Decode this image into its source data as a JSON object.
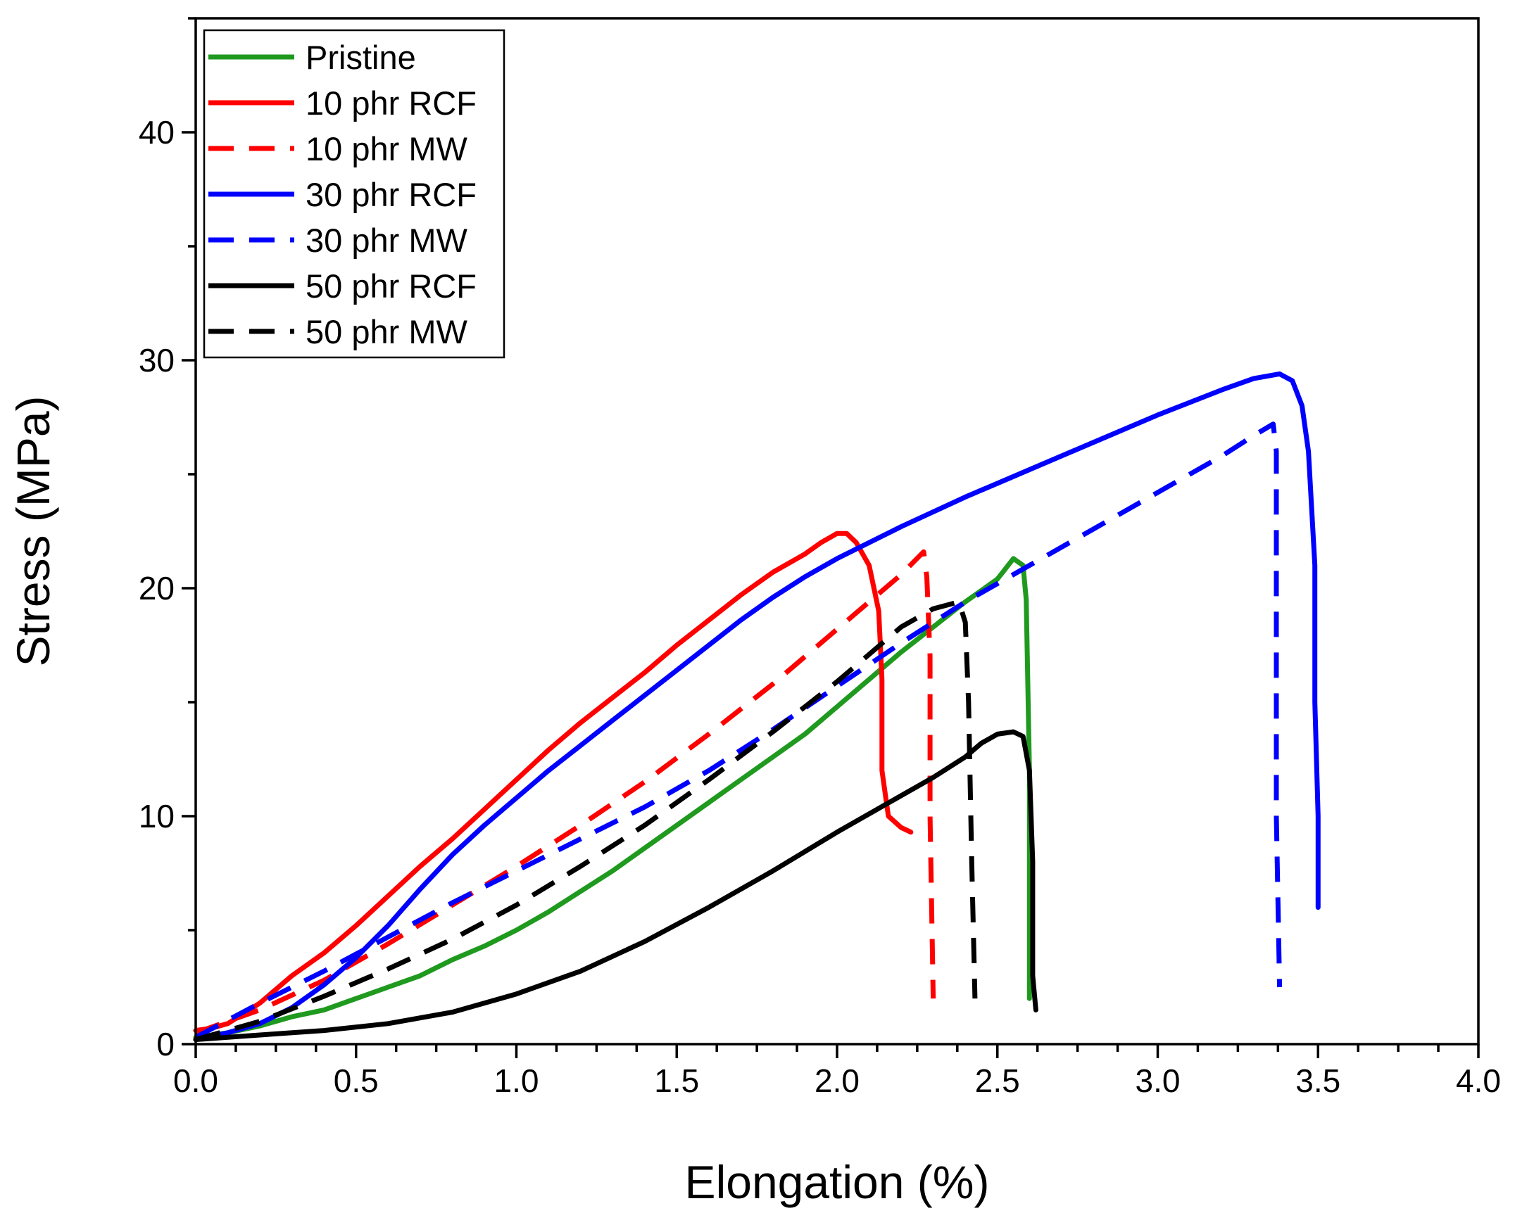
{
  "chart_data": {
    "type": "line",
    "title": "",
    "xlabel": "Elongation (%)",
    "ylabel": "Stress (MPa)",
    "xlim": [
      0,
      4.0
    ],
    "ylim": [
      0,
      45
    ],
    "x_ticks": [
      "0.0",
      "0.5",
      "1.0",
      "1.5",
      "2.0",
      "2.5",
      "3.0",
      "3.5",
      "4.0"
    ],
    "y_ticks": [
      "0",
      "10",
      "20",
      "30",
      "40"
    ],
    "x_tick_values": [
      0,
      0.5,
      1.0,
      1.5,
      2.0,
      2.5,
      3.0,
      3.5,
      4.0
    ],
    "y_tick_values": [
      0,
      10,
      20,
      30,
      40
    ],
    "legend_position": "top-left",
    "series": [
      {
        "name": "Pristine",
        "color": "#1f9a1f",
        "style": "solid",
        "points": [
          [
            0,
            0.3
          ],
          [
            0.1,
            0.5
          ],
          [
            0.2,
            0.8
          ],
          [
            0.3,
            1.2
          ],
          [
            0.4,
            1.5
          ],
          [
            0.5,
            2.0
          ],
          [
            0.6,
            2.5
          ],
          [
            0.7,
            3.0
          ],
          [
            0.8,
            3.7
          ],
          [
            0.9,
            4.3
          ],
          [
            1.0,
            5.0
          ],
          [
            1.1,
            5.8
          ],
          [
            1.2,
            6.7
          ],
          [
            1.3,
            7.6
          ],
          [
            1.4,
            8.6
          ],
          [
            1.5,
            9.6
          ],
          [
            1.6,
            10.6
          ],
          [
            1.7,
            11.6
          ],
          [
            1.8,
            12.6
          ],
          [
            1.9,
            13.6
          ],
          [
            2.0,
            14.8
          ],
          [
            2.1,
            16.0
          ],
          [
            2.2,
            17.2
          ],
          [
            2.3,
            18.3
          ],
          [
            2.4,
            19.4
          ],
          [
            2.5,
            20.4
          ],
          [
            2.55,
            21.3
          ],
          [
            2.58,
            21.0
          ],
          [
            2.59,
            19.5
          ],
          [
            2.6,
            12.0
          ],
          [
            2.6,
            2.0
          ]
        ]
      },
      {
        "name": "10 phr RCF",
        "color": "#ff0000",
        "style": "solid",
        "points": [
          [
            0,
            0.6
          ],
          [
            0.05,
            0.7
          ],
          [
            0.1,
            0.9
          ],
          [
            0.2,
            1.8
          ],
          [
            0.3,
            3.0
          ],
          [
            0.4,
            4.0
          ],
          [
            0.5,
            5.2
          ],
          [
            0.6,
            6.5
          ],
          [
            0.7,
            7.8
          ],
          [
            0.8,
            9.0
          ],
          [
            0.9,
            10.3
          ],
          [
            1.0,
            11.6
          ],
          [
            1.1,
            12.9
          ],
          [
            1.2,
            14.1
          ],
          [
            1.3,
            15.2
          ],
          [
            1.4,
            16.3
          ],
          [
            1.5,
            17.5
          ],
          [
            1.6,
            18.6
          ],
          [
            1.7,
            19.7
          ],
          [
            1.8,
            20.7
          ],
          [
            1.9,
            21.5
          ],
          [
            1.95,
            22.0
          ],
          [
            2.0,
            22.4
          ],
          [
            2.03,
            22.4
          ],
          [
            2.06,
            22.0
          ],
          [
            2.1,
            21.0
          ],
          [
            2.13,
            19.0
          ],
          [
            2.14,
            16.0
          ],
          [
            2.14,
            12.0
          ],
          [
            2.16,
            10.0
          ],
          [
            2.2,
            9.5
          ],
          [
            2.23,
            9.3
          ]
        ]
      },
      {
        "name": "10 phr MW",
        "color": "#ff0000",
        "style": "dashed",
        "points": [
          [
            0,
            0.5
          ],
          [
            0.2,
            1.5
          ],
          [
            0.4,
            2.8
          ],
          [
            0.6,
            4.4
          ],
          [
            0.8,
            6.1
          ],
          [
            1.0,
            7.8
          ],
          [
            1.2,
            9.6
          ],
          [
            1.4,
            11.5
          ],
          [
            1.6,
            13.6
          ],
          [
            1.8,
            15.8
          ],
          [
            2.0,
            18.2
          ],
          [
            2.1,
            19.4
          ],
          [
            2.2,
            20.6
          ],
          [
            2.27,
            21.6
          ],
          [
            2.28,
            20.5
          ],
          [
            2.29,
            17.0
          ],
          [
            2.29,
            10.0
          ],
          [
            2.3,
            2.0
          ]
        ]
      },
      {
        "name": "30 phr RCF",
        "color": "#0000ff",
        "style": "solid",
        "points": [
          [
            0,
            0.2
          ],
          [
            0.1,
            0.5
          ],
          [
            0.2,
            0.9
          ],
          [
            0.3,
            1.6
          ],
          [
            0.4,
            2.6
          ],
          [
            0.5,
            3.8
          ],
          [
            0.6,
            5.2
          ],
          [
            0.7,
            6.8
          ],
          [
            0.8,
            8.3
          ],
          [
            0.9,
            9.6
          ],
          [
            1.0,
            10.8
          ],
          [
            1.1,
            12.0
          ],
          [
            1.2,
            13.1
          ],
          [
            1.3,
            14.2
          ],
          [
            1.4,
            15.3
          ],
          [
            1.5,
            16.4
          ],
          [
            1.6,
            17.5
          ],
          [
            1.7,
            18.6
          ],
          [
            1.8,
            19.6
          ],
          [
            1.9,
            20.5
          ],
          [
            2.0,
            21.3
          ],
          [
            2.2,
            22.7
          ],
          [
            2.4,
            24.0
          ],
          [
            2.6,
            25.2
          ],
          [
            2.8,
            26.4
          ],
          [
            3.0,
            27.6
          ],
          [
            3.2,
            28.7
          ],
          [
            3.3,
            29.2
          ],
          [
            3.38,
            29.4
          ],
          [
            3.42,
            29.1
          ],
          [
            3.45,
            28.0
          ],
          [
            3.47,
            26.0
          ],
          [
            3.49,
            21.0
          ],
          [
            3.49,
            15.0
          ],
          [
            3.5,
            10.0
          ],
          [
            3.5,
            6.0
          ]
        ]
      },
      {
        "name": "30 phr MW",
        "color": "#0000ff",
        "style": "dashed",
        "points": [
          [
            0,
            0.3
          ],
          [
            0.2,
            1.8
          ],
          [
            0.4,
            3.2
          ],
          [
            0.6,
            4.7
          ],
          [
            0.8,
            6.2
          ],
          [
            1.0,
            7.6
          ],
          [
            1.2,
            9.0
          ],
          [
            1.4,
            10.4
          ],
          [
            1.6,
            12.0
          ],
          [
            1.8,
            13.8
          ],
          [
            2.0,
            15.7
          ],
          [
            2.2,
            17.6
          ],
          [
            2.4,
            19.4
          ],
          [
            2.6,
            21.0
          ],
          [
            2.8,
            22.6
          ],
          [
            3.0,
            24.2
          ],
          [
            3.2,
            25.8
          ],
          [
            3.3,
            26.7
          ],
          [
            3.36,
            27.2
          ],
          [
            3.37,
            26.0
          ],
          [
            3.37,
            20.0
          ],
          [
            3.37,
            10.0
          ],
          [
            3.38,
            2.5
          ]
        ]
      },
      {
        "name": "50 phr RCF",
        "color": "#000000",
        "style": "solid",
        "points": [
          [
            0,
            0.2
          ],
          [
            0.2,
            0.4
          ],
          [
            0.4,
            0.6
          ],
          [
            0.6,
            0.9
          ],
          [
            0.8,
            1.4
          ],
          [
            1.0,
            2.2
          ],
          [
            1.2,
            3.2
          ],
          [
            1.4,
            4.5
          ],
          [
            1.6,
            6.0
          ],
          [
            1.8,
            7.6
          ],
          [
            2.0,
            9.3
          ],
          [
            2.2,
            10.9
          ],
          [
            2.3,
            11.7
          ],
          [
            2.4,
            12.6
          ],
          [
            2.45,
            13.2
          ],
          [
            2.5,
            13.6
          ],
          [
            2.55,
            13.7
          ],
          [
            2.58,
            13.5
          ],
          [
            2.6,
            12.0
          ],
          [
            2.61,
            8.0
          ],
          [
            2.61,
            3.0
          ],
          [
            2.62,
            1.5
          ]
        ]
      },
      {
        "name": "50 phr MW",
        "color": "#000000",
        "style": "dashed",
        "points": [
          [
            0,
            0.2
          ],
          [
            0.2,
            1.0
          ],
          [
            0.4,
            2.1
          ],
          [
            0.6,
            3.3
          ],
          [
            0.8,
            4.6
          ],
          [
            1.0,
            6.1
          ],
          [
            1.2,
            7.8
          ],
          [
            1.4,
            9.6
          ],
          [
            1.6,
            11.6
          ],
          [
            1.8,
            13.7
          ],
          [
            2.0,
            15.9
          ],
          [
            2.1,
            17.1
          ],
          [
            2.2,
            18.3
          ],
          [
            2.3,
            19.1
          ],
          [
            2.38,
            19.4
          ],
          [
            2.4,
            18.5
          ],
          [
            2.41,
            15.0
          ],
          [
            2.42,
            8.0
          ],
          [
            2.43,
            2.0
          ]
        ]
      }
    ]
  }
}
